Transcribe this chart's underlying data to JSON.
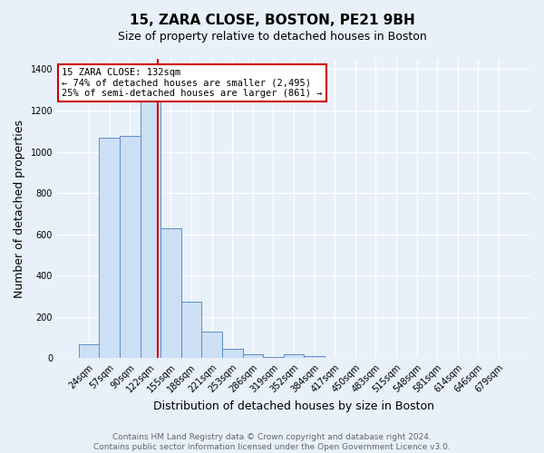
{
  "title": "15, ZARA CLOSE, BOSTON, PE21 9BH",
  "subtitle": "Size of property relative to detached houses in Boston",
  "xlabel": "Distribution of detached houses by size in Boston",
  "ylabel": "Number of detached properties",
  "footer_line1": "Contains HM Land Registry data © Crown copyright and database right 2024.",
  "footer_line2": "Contains public sector information licensed under the Open Government Licence v3.0.",
  "categories": [
    "24sqm",
    "57sqm",
    "90sqm",
    "122sqm",
    "155sqm",
    "188sqm",
    "221sqm",
    "253sqm",
    "286sqm",
    "319sqm",
    "352sqm",
    "384sqm",
    "417sqm",
    "450sqm",
    "483sqm",
    "515sqm",
    "548sqm",
    "581sqm",
    "614sqm",
    "646sqm",
    "679sqm"
  ],
  "values": [
    65,
    1070,
    1075,
    1260,
    630,
    275,
    130,
    45,
    18,
    5,
    20,
    12,
    0,
    0,
    0,
    0,
    0,
    0,
    0,
    0,
    0
  ],
  "bar_color": "#ccdff5",
  "bar_edge_color": "#5b8fc9",
  "background_color": "#e8f0fa",
  "grid_color": "#ffffff",
  "vline_color": "#cc0000",
  "vline_xindex": 3,
  "annotation_text": "15 ZARA CLOSE: 132sqm\n← 74% of detached houses are smaller (2,495)\n25% of semi-detached houses are larger (861) →",
  "annotation_box_facecolor": "#ffffff",
  "annotation_box_edgecolor": "#cc0000",
  "ylim": [
    0,
    1450
  ],
  "yticks": [
    0,
    200,
    400,
    600,
    800,
    1000,
    1200,
    1400
  ],
  "title_fontsize": 11,
  "subtitle_fontsize": 9,
  "ylabel_fontsize": 9,
  "xlabel_fontsize": 9,
  "tick_fontsize": 7,
  "annotation_fontsize": 7.5,
  "footer_fontsize": 6.5,
  "footer_color": "#666666"
}
